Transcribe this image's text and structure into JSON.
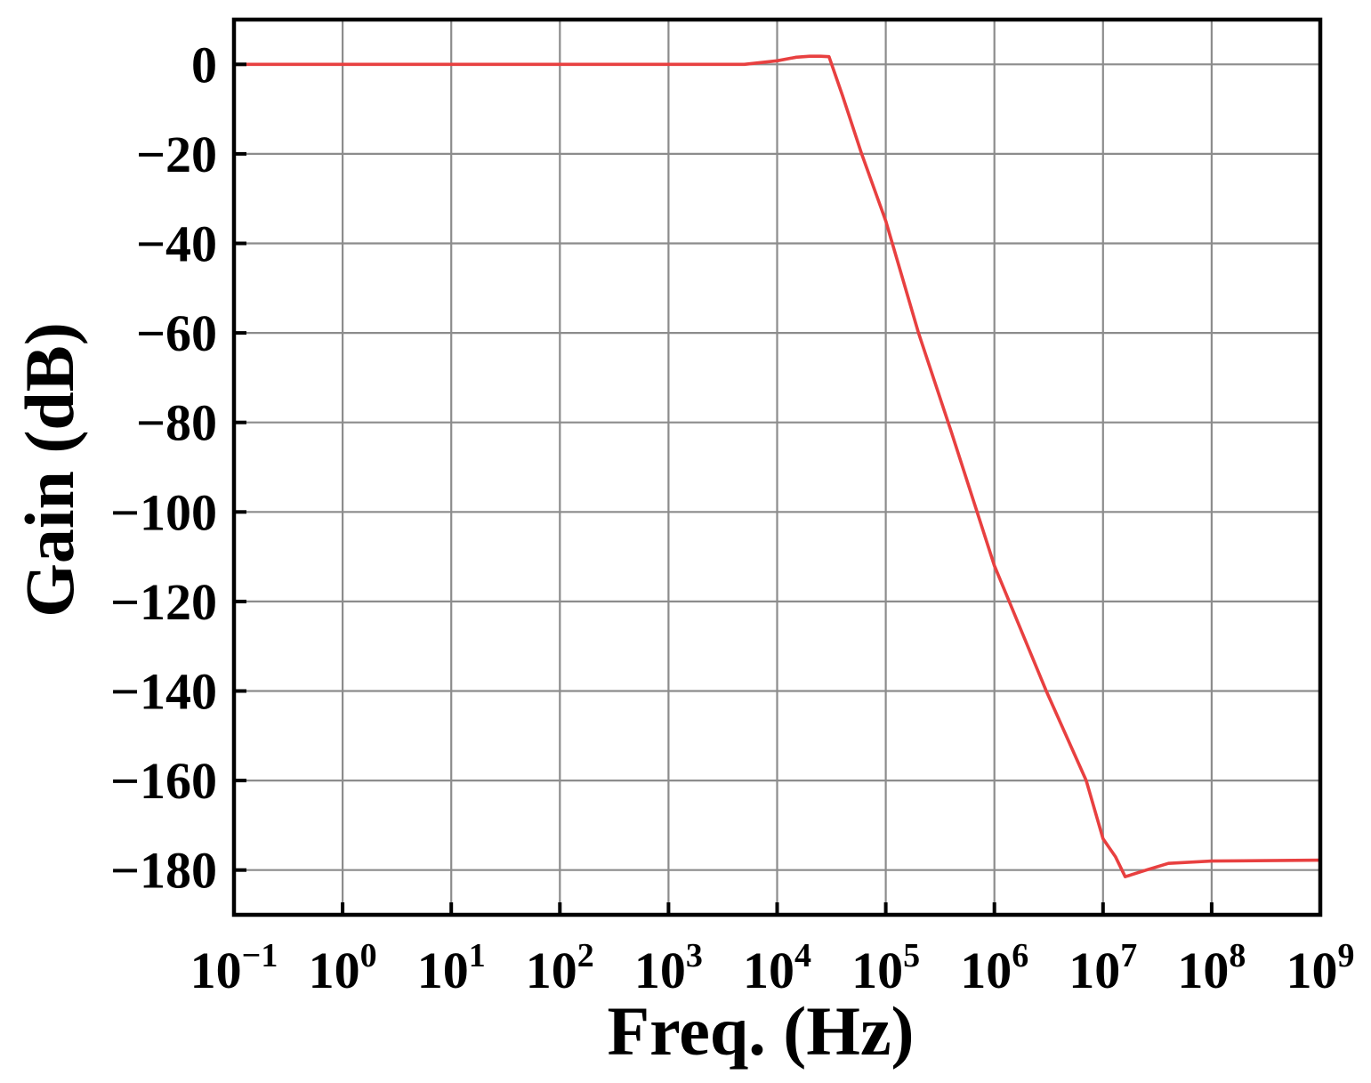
{
  "chart_data": {
    "type": "line",
    "xlabel": "Freq. (Hz)",
    "ylabel": "Gain (dB)",
    "x_scale": "log",
    "xlim": [
      0.1,
      1000000000
    ],
    "ylim": [
      -190,
      10
    ],
    "grid": true,
    "x_ticks": [
      {
        "base": "10",
        "exp": "−1",
        "value": 0.1
      },
      {
        "base": "10",
        "exp": "0",
        "value": 1
      },
      {
        "base": "10",
        "exp": "1",
        "value": 10
      },
      {
        "base": "10",
        "exp": "2",
        "value": 100
      },
      {
        "base": "10",
        "exp": "3",
        "value": 1000
      },
      {
        "base": "10",
        "exp": "4",
        "value": 10000
      },
      {
        "base": "10",
        "exp": "5",
        "value": 100000
      },
      {
        "base": "10",
        "exp": "6",
        "value": 1000000
      },
      {
        "base": "10",
        "exp": "7",
        "value": 10000000
      },
      {
        "base": "10",
        "exp": "8",
        "value": 100000000
      },
      {
        "base": "10",
        "exp": "9",
        "value": 1000000000
      }
    ],
    "y_ticks": [
      {
        "label": "0",
        "value": 0
      },
      {
        "label": "−20",
        "value": -20
      },
      {
        "label": "−40",
        "value": -40
      },
      {
        "label": "−60",
        "value": -60
      },
      {
        "label": "−80",
        "value": -80
      },
      {
        "label": "−100",
        "value": -100
      },
      {
        "label": "−120",
        "value": -120
      },
      {
        "label": "−140",
        "value": -140
      },
      {
        "label": "−160",
        "value": -160
      },
      {
        "label": "−180",
        "value": -180
      }
    ],
    "series": [
      {
        "color": "#e84040",
        "x": [
          0.1,
          1,
          10,
          100,
          1000,
          5000,
          10000,
          15000,
          20000,
          25000,
          30000,
          40000,
          60000,
          100000,
          200000,
          400000,
          1000000,
          3000000,
          7000000,
          10000000,
          13000000,
          16000000,
          25000000,
          40000000,
          100000000,
          1000000000
        ],
        "y": [
          0,
          0,
          0,
          0,
          0,
          0,
          0.8,
          1.6,
          1.8,
          1.8,
          1.7,
          -7,
          -20,
          -35,
          -60,
          -82,
          -112,
          -140,
          -160,
          -173,
          -177,
          -181.5,
          -180,
          -178.5,
          -178,
          -177.8
        ]
      }
    ]
  }
}
